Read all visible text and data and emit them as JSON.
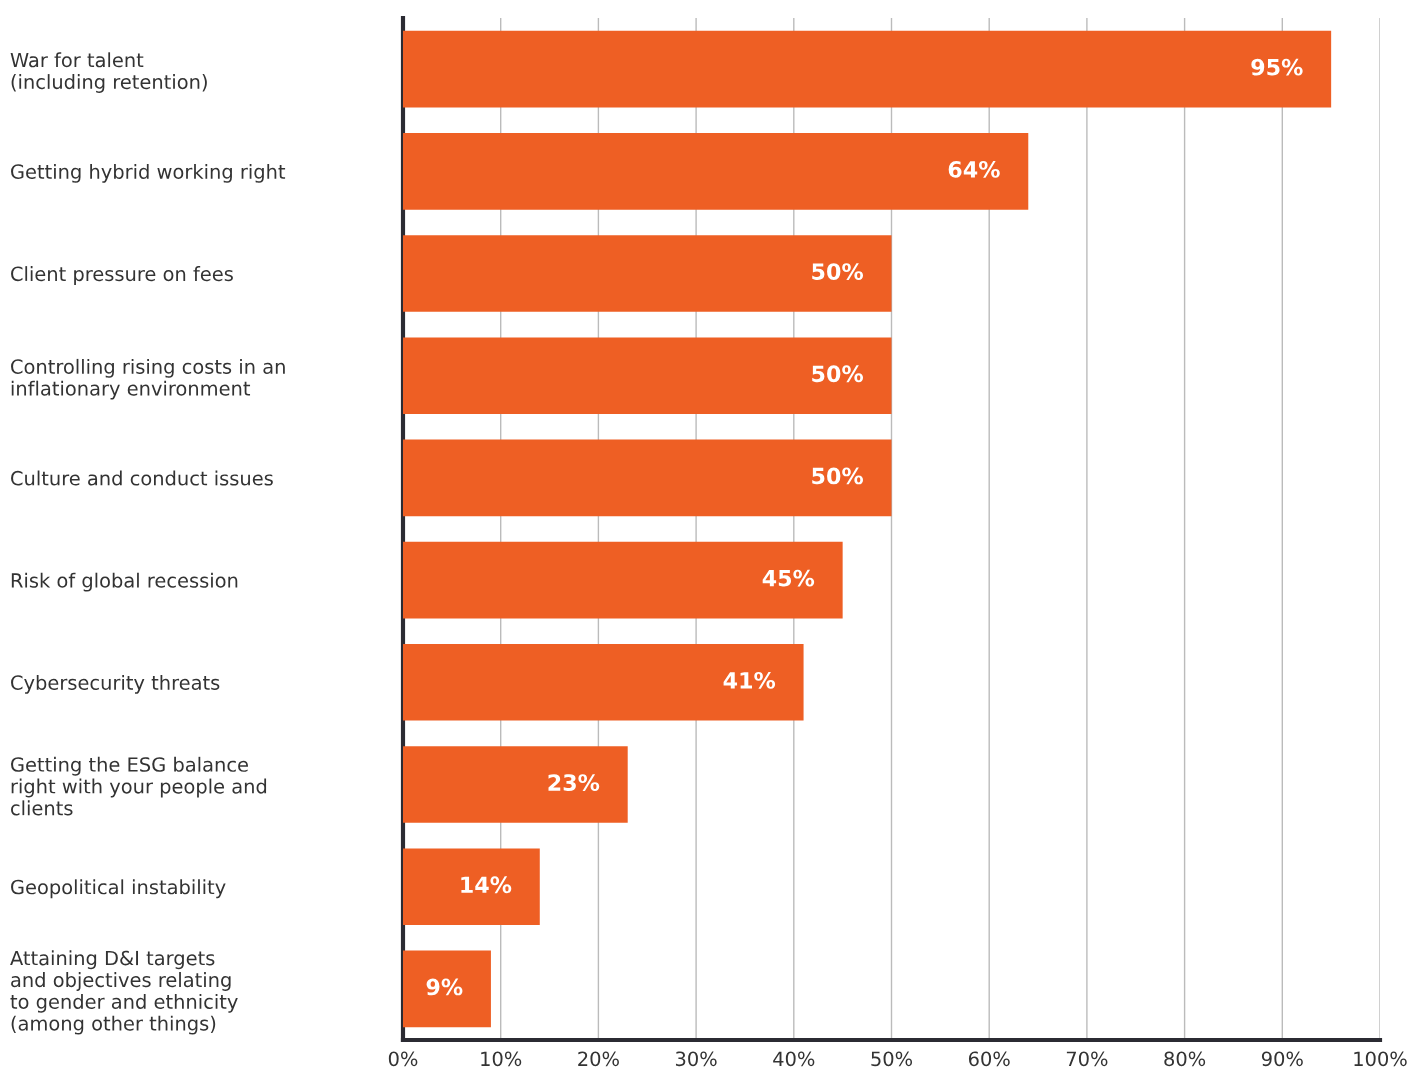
{
  "chart_data": {
    "type": "bar",
    "orientation": "horizontal",
    "categories": [
      "War for talent\n(including retention)",
      "Getting hybrid working right",
      "Client pressure on fees",
      "Controlling rising costs in an\ninflationary environment",
      "Culture and conduct issues",
      "Risk of global recession",
      "Cybersecurity threats",
      "Getting the ESG balance\nright with your people and\nclients",
      "Geopolitical instability",
      "Attaining D&I targets\nand objectives relating\nto gender and ethnicity\n(among other things)"
    ],
    "values": [
      95,
      64,
      50,
      50,
      50,
      45,
      41,
      23,
      14,
      9
    ],
    "value_labels": [
      "95%",
      "64%",
      "50%",
      "50%",
      "50%",
      "45%",
      "41%",
      "23%",
      "14%",
      "9%"
    ],
    "color": "#ee5f24",
    "xlim": [
      0,
      100
    ],
    "xticks": [
      {
        "value": 0,
        "label": "0%"
      },
      {
        "value": 10,
        "label": "10%"
      },
      {
        "value": 20,
        "label": "20%"
      },
      {
        "value": 30,
        "label": "30%"
      },
      {
        "value": 40,
        "label": "40%"
      },
      {
        "value": 50,
        "label": "50%"
      },
      {
        "value": 60,
        "label": "60%"
      },
      {
        "value": 70,
        "label": "70%"
      },
      {
        "value": 80,
        "label": "80%"
      },
      {
        "value": 90,
        "label": "90%"
      },
      {
        "value": 100,
        "label": "100%"
      }
    ],
    "grid": "x",
    "legend": false
  }
}
